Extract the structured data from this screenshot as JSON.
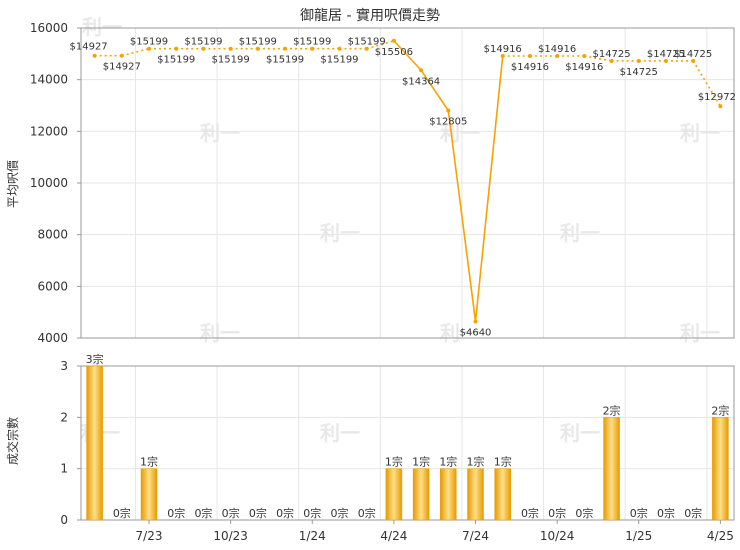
{
  "chart_data": [
    {
      "type": "line",
      "title": "御龍居 - 實用呎價走勢",
      "ylabel": "平均呎價",
      "ylim": [
        4000,
        16000
      ],
      "yticks": [
        "4000",
        "6000",
        "8000",
        "10000",
        "12000",
        "14000",
        "16000"
      ],
      "grid": true,
      "values": [
        14927,
        14927,
        15199,
        15199,
        15199,
        15199,
        15199,
        15199,
        15199,
        15199,
        15199,
        15506,
        14364,
        12805,
        4640,
        14916,
        14916,
        14916,
        14916,
        14725,
        14725,
        14725,
        14725,
        12972
      ],
      "labels": [
        "$14927",
        "$14927",
        "$15199",
        "$15199",
        "$15199",
        "$15199",
        "$15199",
        "$15199",
        "$15199",
        "$15199",
        "$15199",
        "$15506",
        "$14364",
        "$12805",
        "$4640",
        "$14916",
        "$14916",
        "$14916",
        "$14916",
        "$14725",
        "$14725",
        "$14725",
        "$14725",
        "$12972"
      ],
      "interpolated": [
        false,
        true,
        false,
        true,
        true,
        true,
        true,
        true,
        true,
        true,
        true,
        false,
        false,
        false,
        false,
        false,
        true,
        true,
        true,
        false,
        true,
        true,
        true,
        false
      ]
    },
    {
      "type": "bar",
      "ylabel": "成交宗數",
      "ylim": [
        0,
        3
      ],
      "yticks": [
        "0",
        "1",
        "2",
        "3"
      ],
      "xticks": [
        "7/23",
        "10/23",
        "1/24",
        "4/24",
        "7/24",
        "10/24",
        "1/25",
        "4/25"
      ],
      "grid": true,
      "values": [
        3,
        0,
        1,
        0,
        0,
        0,
        0,
        0,
        0,
        0,
        0,
        1,
        1,
        1,
        1,
        1,
        0,
        0,
        0,
        2,
        0,
        0,
        0,
        2
      ],
      "labels": [
        "3宗",
        "0宗",
        "1宗",
        "0宗",
        "0宗",
        "0宗",
        "0宗",
        "0宗",
        "0宗",
        "0宗",
        "0宗",
        "1宗",
        "1宗",
        "1宗",
        "1宗",
        "1宗",
        "0宗",
        "0宗",
        "0宗",
        "2宗",
        "0宗",
        "0宗",
        "0宗",
        "2宗"
      ]
    }
  ],
  "watermark": "利一",
  "colors": {
    "line": "#f5a300",
    "bar_light": "#fde08a",
    "bar_dark": "#e89a00",
    "grid": "#e6e6e6",
    "axis": "#999999"
  }
}
